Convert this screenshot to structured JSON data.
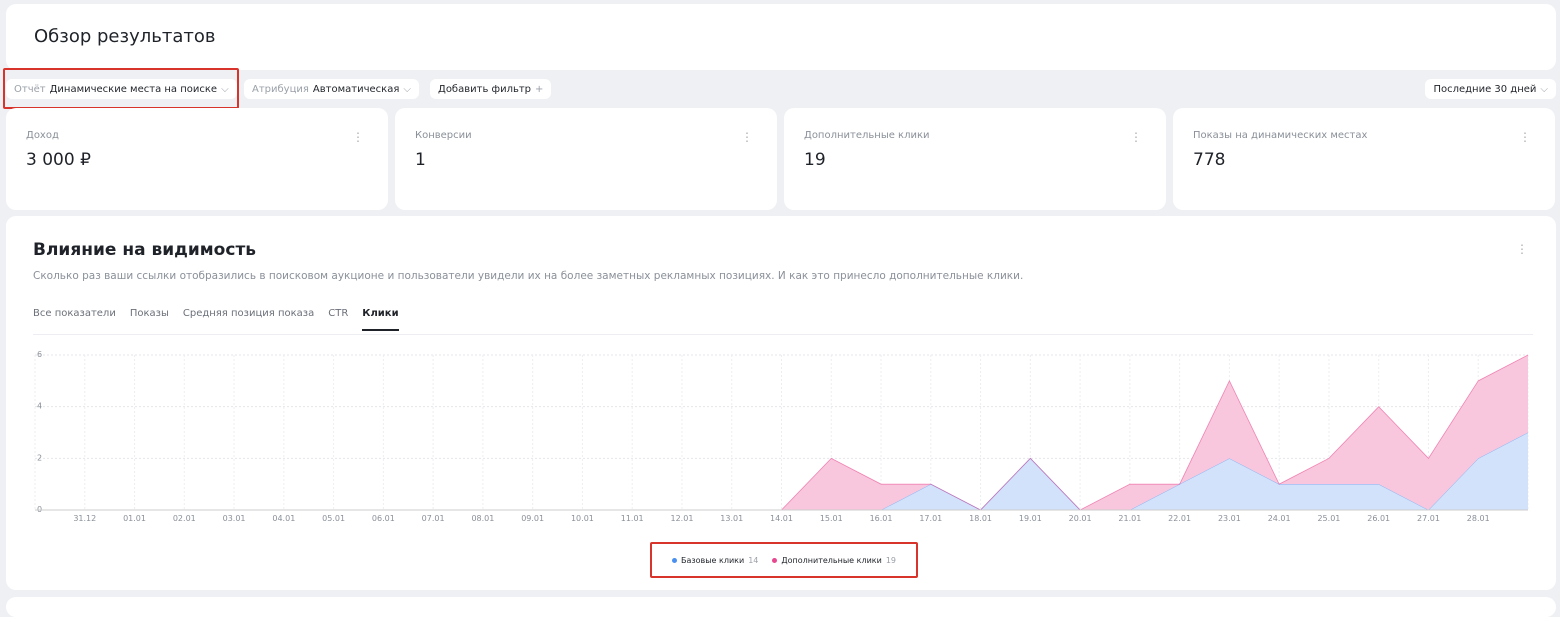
{
  "header": {
    "title": "Обзор результатов"
  },
  "filters": {
    "report_label": "Отчёт",
    "report_value": "Динамические места на поиске",
    "attribution_label": "Атрибуция",
    "attribution_value": "Автоматическая",
    "add_filter": "Добавить фильтр",
    "period": "Последние 30 дней"
  },
  "cards": [
    {
      "label": "Доход",
      "value": "3 000 ₽"
    },
    {
      "label": "Конверсии",
      "value": "1"
    },
    {
      "label": "Дополнительные клики",
      "value": "19"
    },
    {
      "label": "Показы на динамических местах",
      "value": "778"
    }
  ],
  "panel": {
    "title": "Влияние на видимость",
    "subtitle": "Сколько раз ваши ссылки отобразились в поисковом аукционе и пользователи увидели их на более заметных рекламных позициях. И как это принесло дополнительные клики.",
    "tabs": [
      "Все показатели",
      "Показы",
      "Средняя позиция показа",
      "CTR",
      "Клики"
    ],
    "active_tab": 4
  },
  "chart_data": {
    "type": "stacked_area",
    "categories": [
      null,
      "31.12",
      "01.01",
      "02.01",
      "03.01",
      "04.01",
      "05.01",
      "06.01",
      "07.01",
      "08.01",
      "09.01",
      "10.01",
      "11.01",
      "12.01",
      "13.01",
      "14.01",
      "15.01",
      "16.01",
      "17.01",
      "18.01",
      "19.01",
      "20.01",
      "21.01",
      "22.01",
      "23.01",
      "24.01",
      "25.01",
      "26.01",
      "27.01",
      "28.01",
      null
    ],
    "series": [
      {
        "name": "Базовые клики",
        "total": 14,
        "color": "#4a90f0",
        "fill": "#d2e2fb",
        "values": [
          0,
          0,
          0,
          0,
          0,
          0,
          0,
          0,
          0,
          0,
          0,
          0,
          0,
          0,
          0,
          0,
          0,
          0,
          1,
          0,
          2,
          0,
          0,
          1,
          2,
          1,
          1,
          1,
          0,
          2,
          3
        ]
      },
      {
        "name": "Дополнительные клики",
        "total": 19,
        "color": "#e8488f",
        "fill": "#f8c7dd",
        "values": [
          0,
          0,
          0,
          0,
          0,
          0,
          0,
          0,
          0,
          0,
          0,
          0,
          0,
          0,
          0,
          0,
          2,
          1,
          0,
          0,
          0,
          0,
          1,
          0,
          3,
          0,
          1,
          3,
          2,
          3,
          3
        ]
      }
    ],
    "ylim": [
      0,
      6
    ],
    "yticks": [
      0,
      2,
      4,
      6
    ],
    "grid": true
  }
}
